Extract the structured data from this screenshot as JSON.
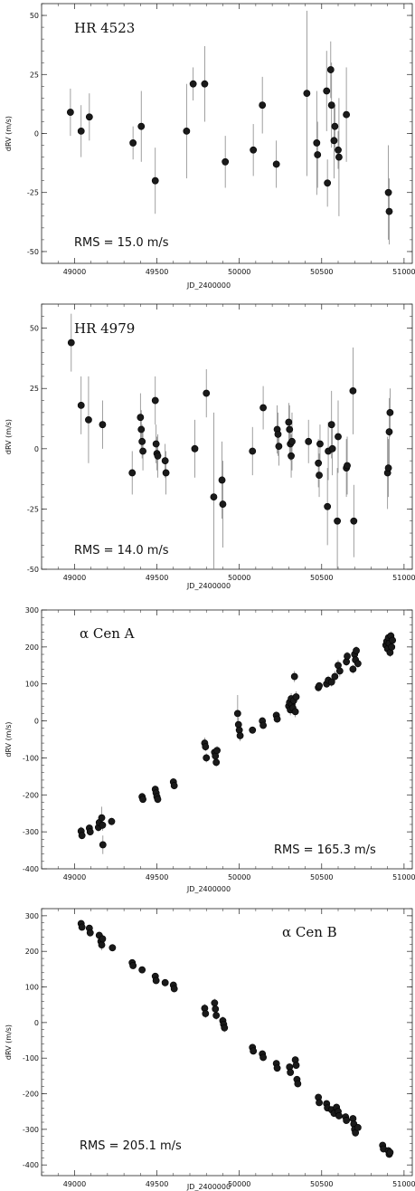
{
  "chart_data": [
    {
      "type": "scatter",
      "title": "HR 4523",
      "annotation": "RMS = 15.0 m/s",
      "xlabel": "JD_2400000",
      "ylabel": "dRV (m/s)",
      "xlim": [
        48800,
        51050
      ],
      "ylim": [
        -55,
        55
      ],
      "xticks": [
        49000,
        49500,
        50000,
        50500,
        51000
      ],
      "yticks": [
        -50,
        -25,
        0,
        25,
        50
      ],
      "points": [
        {
          "x": 48975,
          "y": 9,
          "err": 10
        },
        {
          "x": 49040,
          "y": 1,
          "err": 11
        },
        {
          "x": 49090,
          "y": 7,
          "err": 10
        },
        {
          "x": 49355,
          "y": -4,
          "err": 7
        },
        {
          "x": 49405,
          "y": 3,
          "err": 15
        },
        {
          "x": 49490,
          "y": -20,
          "err": 14
        },
        {
          "x": 49680,
          "y": 1,
          "err": 20
        },
        {
          "x": 49720,
          "y": 21,
          "err": 7
        },
        {
          "x": 49790,
          "y": 21,
          "err": 16
        },
        {
          "x": 49915,
          "y": -12,
          "err": 11
        },
        {
          "x": 50085,
          "y": -7,
          "err": 11
        },
        {
          "x": 50140,
          "y": 12,
          "err": 12
        },
        {
          "x": 50225,
          "y": -13,
          "err": 10
        },
        {
          "x": 50410,
          "y": 17,
          "err": 35
        },
        {
          "x": 50470,
          "y": -4,
          "err": 22
        },
        {
          "x": 50475,
          "y": -9,
          "err": 14
        },
        {
          "x": 50530,
          "y": 18,
          "err": 17
        },
        {
          "x": 50535,
          "y": -21,
          "err": 10
        },
        {
          "x": 50555,
          "y": 27,
          "err": 12
        },
        {
          "x": 50560,
          "y": 12,
          "err": 18
        },
        {
          "x": 50575,
          "y": -3,
          "err": 16
        },
        {
          "x": 50580,
          "y": 3,
          "err": 9
        },
        {
          "x": 50600,
          "y": -7,
          "err": 8
        },
        {
          "x": 50605,
          "y": -10,
          "err": 25
        },
        {
          "x": 50650,
          "y": 8,
          "err": 20
        },
        {
          "x": 50905,
          "y": -25,
          "err": 20
        },
        {
          "x": 50910,
          "y": -33,
          "err": 14
        }
      ]
    },
    {
      "type": "scatter",
      "title": "HR 4979",
      "annotation": "RMS = 14.0 m/s",
      "xlabel": "JD_2400000",
      "ylabel": "dRV (m/s)",
      "xlim": [
        48800,
        51050
      ],
      "ylim": [
        -50,
        60
      ],
      "xticks": [
        49000,
        49500,
        50000,
        50500,
        51000
      ],
      "yticks": [
        -50,
        -25,
        0,
        25,
        50
      ],
      "points": [
        {
          "x": 48980,
          "y": 44,
          "err": 12
        },
        {
          "x": 49040,
          "y": 18,
          "err": 12
        },
        {
          "x": 49085,
          "y": 12,
          "err": 18
        },
        {
          "x": 49170,
          "y": 10,
          "err": 10
        },
        {
          "x": 49350,
          "y": -10,
          "err": 9
        },
        {
          "x": 49400,
          "y": 13,
          "err": 10
        },
        {
          "x": 49405,
          "y": 8,
          "err": 8
        },
        {
          "x": 49410,
          "y": 3,
          "err": 7
        },
        {
          "x": 49415,
          "y": -1,
          "err": 8
        },
        {
          "x": 49490,
          "y": 20,
          "err": 10
        },
        {
          "x": 49495,
          "y": 2,
          "err": 8
        },
        {
          "x": 49500,
          "y": -2,
          "err": 7
        },
        {
          "x": 49505,
          "y": -3,
          "err": 9
        },
        {
          "x": 49550,
          "y": -5,
          "err": 7
        },
        {
          "x": 49555,
          "y": -10,
          "err": 9
        },
        {
          "x": 49730,
          "y": 0,
          "err": 12
        },
        {
          "x": 49800,
          "y": 23,
          "err": 10
        },
        {
          "x": 49845,
          "y": -20,
          "err": 35
        },
        {
          "x": 49895,
          "y": -13,
          "err": 16
        },
        {
          "x": 49900,
          "y": -23,
          "err": 18
        },
        {
          "x": 50080,
          "y": -1,
          "err": 10
        },
        {
          "x": 50145,
          "y": 17,
          "err": 9
        },
        {
          "x": 50230,
          "y": 8,
          "err": 10
        },
        {
          "x": 50235,
          "y": 6,
          "err": 9
        },
        {
          "x": 50240,
          "y": 1,
          "err": 8
        },
        {
          "x": 50300,
          "y": 11,
          "err": 8
        },
        {
          "x": 50305,
          "y": 8,
          "err": 10
        },
        {
          "x": 50310,
          "y": 2,
          "err": 7
        },
        {
          "x": 50315,
          "y": -3,
          "err": 9
        },
        {
          "x": 50320,
          "y": 3,
          "err": 12
        },
        {
          "x": 50420,
          "y": 3,
          "err": 9
        },
        {
          "x": 50480,
          "y": -6,
          "err": 10
        },
        {
          "x": 50485,
          "y": -11,
          "err": 9
        },
        {
          "x": 50490,
          "y": 2,
          "err": 8
        },
        {
          "x": 50535,
          "y": -24,
          "err": 16
        },
        {
          "x": 50540,
          "y": -1,
          "err": 12
        },
        {
          "x": 50560,
          "y": 10,
          "err": 14
        },
        {
          "x": 50565,
          "y": 0,
          "err": 11
        },
        {
          "x": 50595,
          "y": -30,
          "err": 22
        },
        {
          "x": 50600,
          "y": 5,
          "err": 15
        },
        {
          "x": 50650,
          "y": -8,
          "err": 12
        },
        {
          "x": 50655,
          "y": -7,
          "err": 12
        },
        {
          "x": 50690,
          "y": 24,
          "err": 18
        },
        {
          "x": 50695,
          "y": -30,
          "err": 15
        },
        {
          "x": 50900,
          "y": -10,
          "err": 15
        },
        {
          "x": 50905,
          "y": -8,
          "err": 12
        },
        {
          "x": 50910,
          "y": 7,
          "err": 14
        },
        {
          "x": 50915,
          "y": 15,
          "err": 10
        }
      ]
    },
    {
      "type": "scatter",
      "title": "α Cen A",
      "annotation": "RMS = 165.3 m/s",
      "xlabel": "JD_2400000",
      "ylabel": "dRV (m/s)",
      "xlim": [
        48800,
        51050
      ],
      "ylim": [
        -400,
        300
      ],
      "xticks": [
        49000,
        49500,
        50000,
        50500,
        51000
      ],
      "yticks": [
        -400,
        -300,
        -200,
        -100,
        0,
        100,
        200,
        300
      ],
      "points": [
        {
          "x": 49040,
          "y": -298,
          "err": 12
        },
        {
          "x": 49045,
          "y": -310,
          "err": 10
        },
        {
          "x": 49090,
          "y": -290,
          "err": 10
        },
        {
          "x": 49095,
          "y": -300,
          "err": 10
        },
        {
          "x": 49145,
          "y": -288,
          "err": 12
        },
        {
          "x": 49150,
          "y": -275,
          "err": 10
        },
        {
          "x": 49165,
          "y": -262,
          "err": 30
        },
        {
          "x": 49170,
          "y": -282,
          "err": 15
        },
        {
          "x": 49172,
          "y": -335,
          "err": 25
        },
        {
          "x": 49225,
          "y": -272,
          "err": 10
        },
        {
          "x": 49410,
          "y": -205,
          "err": 10
        },
        {
          "x": 49415,
          "y": -212,
          "err": 10
        },
        {
          "x": 49490,
          "y": -185,
          "err": 10
        },
        {
          "x": 49495,
          "y": -195,
          "err": 10
        },
        {
          "x": 49500,
          "y": -205,
          "err": 10
        },
        {
          "x": 49505,
          "y": -212,
          "err": 10
        },
        {
          "x": 49600,
          "y": -165,
          "err": 10
        },
        {
          "x": 49605,
          "y": -175,
          "err": 10
        },
        {
          "x": 49790,
          "y": -60,
          "err": 15
        },
        {
          "x": 49795,
          "y": -70,
          "err": 12
        },
        {
          "x": 49800,
          "y": -100,
          "err": 12
        },
        {
          "x": 49850,
          "y": -85,
          "err": 12
        },
        {
          "x": 49855,
          "y": -95,
          "err": 12
        },
        {
          "x": 49860,
          "y": -112,
          "err": 12
        },
        {
          "x": 49865,
          "y": -80,
          "err": 12
        },
        {
          "x": 49990,
          "y": 20,
          "err": 50
        },
        {
          "x": 49995,
          "y": -10,
          "err": 20
        },
        {
          "x": 50000,
          "y": -25,
          "err": 15
        },
        {
          "x": 50005,
          "y": -40,
          "err": 15
        },
        {
          "x": 50080,
          "y": -25,
          "err": 10
        },
        {
          "x": 50140,
          "y": 0,
          "err": 10
        },
        {
          "x": 50145,
          "y": -12,
          "err": 10
        },
        {
          "x": 50225,
          "y": 15,
          "err": 10
        },
        {
          "x": 50230,
          "y": 5,
          "err": 10
        },
        {
          "x": 50300,
          "y": 40,
          "err": 15
        },
        {
          "x": 50305,
          "y": 50,
          "err": 15
        },
        {
          "x": 50310,
          "y": 30,
          "err": 15
        },
        {
          "x": 50315,
          "y": 60,
          "err": 15
        },
        {
          "x": 50320,
          "y": 45,
          "err": 15
        },
        {
          "x": 50325,
          "y": 35,
          "err": 15
        },
        {
          "x": 50330,
          "y": 55,
          "err": 15
        },
        {
          "x": 50335,
          "y": 120,
          "err": 15
        },
        {
          "x": 50340,
          "y": 25,
          "err": 15
        },
        {
          "x": 50345,
          "y": 65,
          "err": 15
        },
        {
          "x": 50480,
          "y": 90,
          "err": 10
        },
        {
          "x": 50485,
          "y": 95,
          "err": 10
        },
        {
          "x": 50530,
          "y": 100,
          "err": 10
        },
        {
          "x": 50540,
          "y": 110,
          "err": 12
        },
        {
          "x": 50560,
          "y": 105,
          "err": 12
        },
        {
          "x": 50580,
          "y": 120,
          "err": 15
        },
        {
          "x": 50600,
          "y": 150,
          "err": 15
        },
        {
          "x": 50610,
          "y": 135,
          "err": 15
        },
        {
          "x": 50650,
          "y": 160,
          "err": 12
        },
        {
          "x": 50655,
          "y": 175,
          "err": 12
        },
        {
          "x": 50690,
          "y": 140,
          "err": 12
        },
        {
          "x": 50700,
          "y": 180,
          "err": 12
        },
        {
          "x": 50705,
          "y": 165,
          "err": 12
        },
        {
          "x": 50710,
          "y": 190,
          "err": 12
        },
        {
          "x": 50720,
          "y": 155,
          "err": 12
        },
        {
          "x": 50890,
          "y": 205,
          "err": 12
        },
        {
          "x": 50895,
          "y": 215,
          "err": 12
        },
        {
          "x": 50900,
          "y": 195,
          "err": 12
        },
        {
          "x": 50905,
          "y": 225,
          "err": 12
        },
        {
          "x": 50910,
          "y": 210,
          "err": 12
        },
        {
          "x": 50915,
          "y": 185,
          "err": 12
        },
        {
          "x": 50920,
          "y": 230,
          "err": 12
        },
        {
          "x": 50925,
          "y": 200,
          "err": 12
        },
        {
          "x": 50930,
          "y": 218,
          "err": 12
        }
      ]
    },
    {
      "type": "scatter",
      "title": "α Cen B",
      "annotation": "RMS = 205.1 m/s",
      "xlabel": "JD_2400000",
      "ylabel": "dRV (m/s)",
      "xlim": [
        48800,
        51050
      ],
      "ylim": [
        -430,
        320
      ],
      "xticks": [
        49000,
        49500,
        50000,
        50500,
        51000
      ],
      "yticks": [
        -400,
        -300,
        -200,
        -100,
        0,
        100,
        200,
        300
      ],
      "points": [
        {
          "x": 49040,
          "y": 278,
          "err": 10
        },
        {
          "x": 49045,
          "y": 268,
          "err": 10
        },
        {
          "x": 49090,
          "y": 265,
          "err": 10
        },
        {
          "x": 49095,
          "y": 252,
          "err": 10
        },
        {
          "x": 49150,
          "y": 245,
          "err": 10
        },
        {
          "x": 49160,
          "y": 228,
          "err": 12
        },
        {
          "x": 49165,
          "y": 218,
          "err": 15
        },
        {
          "x": 49170,
          "y": 235,
          "err": 12
        },
        {
          "x": 49230,
          "y": 210,
          "err": 10
        },
        {
          "x": 49350,
          "y": 168,
          "err": 10
        },
        {
          "x": 49355,
          "y": 160,
          "err": 10
        },
        {
          "x": 49410,
          "y": 148,
          "err": 10
        },
        {
          "x": 49490,
          "y": 130,
          "err": 10
        },
        {
          "x": 49495,
          "y": 118,
          "err": 10
        },
        {
          "x": 49550,
          "y": 112,
          "err": 10
        },
        {
          "x": 49600,
          "y": 105,
          "err": 10
        },
        {
          "x": 49605,
          "y": 95,
          "err": 10
        },
        {
          "x": 49790,
          "y": 40,
          "err": 12
        },
        {
          "x": 49795,
          "y": 25,
          "err": 12
        },
        {
          "x": 49850,
          "y": 55,
          "err": 12
        },
        {
          "x": 49855,
          "y": 38,
          "err": 12
        },
        {
          "x": 49860,
          "y": 20,
          "err": 12
        },
        {
          "x": 49900,
          "y": 5,
          "err": 12
        },
        {
          "x": 49905,
          "y": -5,
          "err": 12
        },
        {
          "x": 49910,
          "y": -15,
          "err": 12
        },
        {
          "x": 50080,
          "y": -70,
          "err": 10
        },
        {
          "x": 50085,
          "y": -80,
          "err": 10
        },
        {
          "x": 50140,
          "y": -88,
          "err": 10
        },
        {
          "x": 50145,
          "y": -98,
          "err": 10
        },
        {
          "x": 50225,
          "y": -115,
          "err": 10
        },
        {
          "x": 50230,
          "y": -128,
          "err": 10
        },
        {
          "x": 50305,
          "y": -125,
          "err": 10
        },
        {
          "x": 50310,
          "y": -140,
          "err": 10
        },
        {
          "x": 50340,
          "y": -105,
          "err": 10
        },
        {
          "x": 50345,
          "y": -120,
          "err": 10
        },
        {
          "x": 50350,
          "y": -160,
          "err": 10
        },
        {
          "x": 50355,
          "y": -172,
          "err": 10
        },
        {
          "x": 50480,
          "y": -210,
          "err": 10
        },
        {
          "x": 50485,
          "y": -225,
          "err": 10
        },
        {
          "x": 50530,
          "y": -228,
          "err": 10
        },
        {
          "x": 50535,
          "y": -240,
          "err": 10
        },
        {
          "x": 50560,
          "y": -245,
          "err": 10
        },
        {
          "x": 50575,
          "y": -255,
          "err": 10
        },
        {
          "x": 50590,
          "y": -238,
          "err": 10
        },
        {
          "x": 50600,
          "y": -250,
          "err": 10
        },
        {
          "x": 50605,
          "y": -262,
          "err": 10
        },
        {
          "x": 50645,
          "y": -265,
          "err": 10
        },
        {
          "x": 50650,
          "y": -275,
          "err": 10
        },
        {
          "x": 50690,
          "y": -270,
          "err": 10
        },
        {
          "x": 50695,
          "y": -285,
          "err": 10
        },
        {
          "x": 50700,
          "y": -300,
          "err": 10
        },
        {
          "x": 50705,
          "y": -310,
          "err": 10
        },
        {
          "x": 50720,
          "y": -295,
          "err": 10
        },
        {
          "x": 50870,
          "y": -345,
          "err": 10
        },
        {
          "x": 50875,
          "y": -355,
          "err": 10
        },
        {
          "x": 50905,
          "y": -360,
          "err": 10
        },
        {
          "x": 50910,
          "y": -370,
          "err": 10
        },
        {
          "x": 50915,
          "y": -365,
          "err": 10
        }
      ]
    }
  ]
}
